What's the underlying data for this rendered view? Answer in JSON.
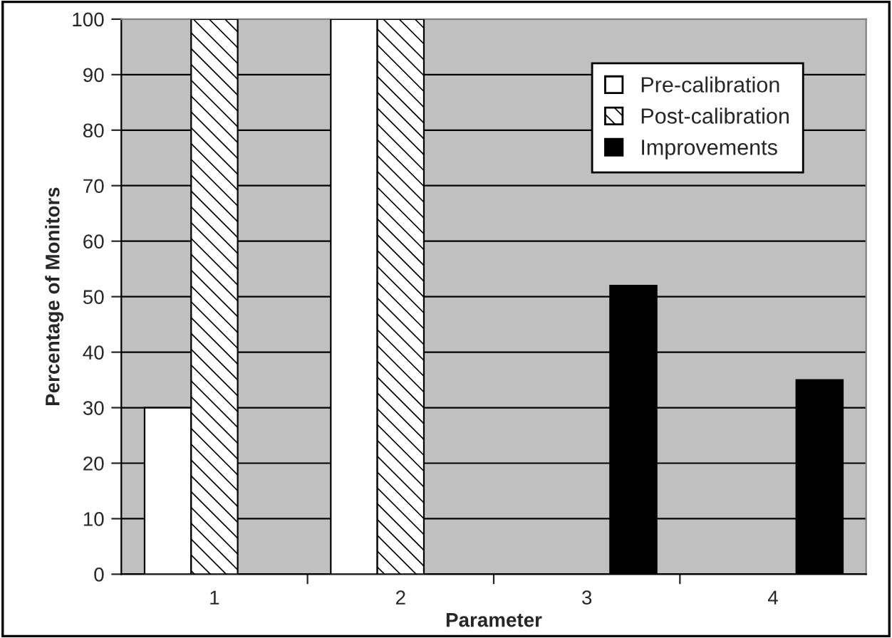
{
  "chart_data": {
    "type": "bar",
    "xlabel": "Parameter",
    "ylabel": "Percentage of Monitors",
    "categories": [
      "1",
      "2",
      "3",
      "4"
    ],
    "series": [
      {
        "name": "Pre-calibration",
        "color": "#ffffff",
        "values": [
          30,
          100,
          null,
          null
        ]
      },
      {
        "name": "Post-calibration",
        "color": "#000000",
        "values": [
          100,
          100,
          null,
          null
        ]
      },
      {
        "name": "Improvements",
        "color": "#000000",
        "values": [
          null,
          null,
          52,
          35
        ]
      }
    ],
    "ylim": [
      0,
      100
    ],
    "yticks": [
      0,
      10,
      20,
      30,
      40,
      50,
      60,
      70,
      80,
      90,
      100
    ],
    "grid": "y",
    "legend": "top right"
  }
}
